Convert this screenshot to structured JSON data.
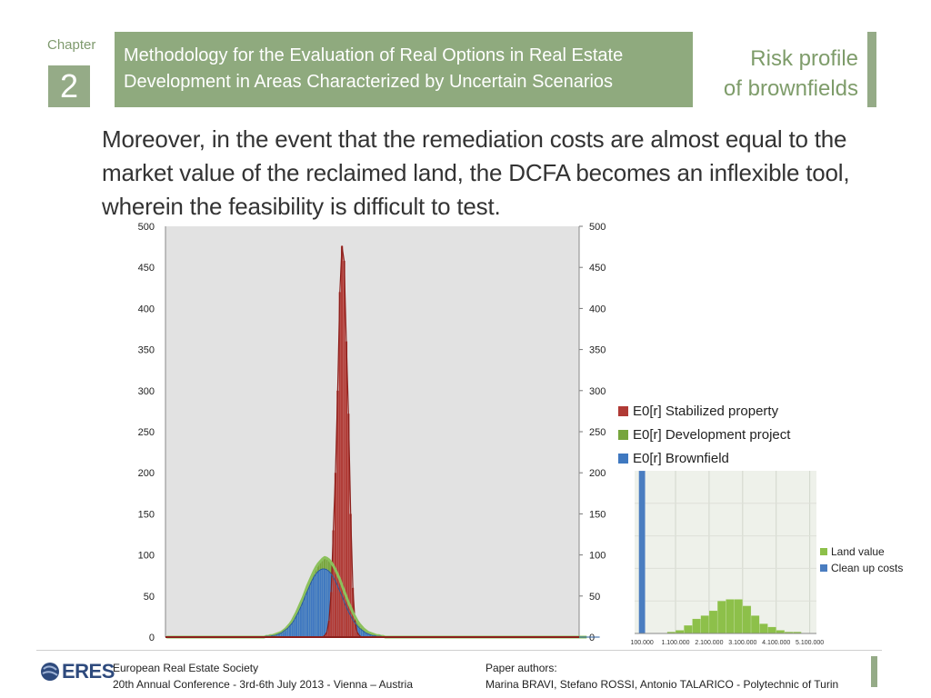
{
  "header": {
    "chapter_label": "Chapter",
    "chapter_number": "2",
    "title_line1": "Methodology for the Evaluation of Real Options in Real Estate",
    "title_line2": "Development in Areas Characterized by Uncertain Scenarios",
    "section_line1": "Risk profile",
    "section_line2": "of brownfields"
  },
  "body": {
    "paragraph": "Moreover, in the event that the remediation costs are almost equal to the market value of the reclaimed land, the DCFA becomes an inflexible tool, wherein the feasibility is difficult to test."
  },
  "colors": {
    "accent": "#8faa7e",
    "stabilized": "#b03a35",
    "development": "#77a53d",
    "brownfield": "#3f78c0",
    "land_value": "#8dc04a",
    "clean_up": "#4a7dc0"
  },
  "chart_data": [
    {
      "type": "bar",
      "title": "",
      "xlabel": "",
      "ylabel": "",
      "ylim": [
        0,
        500
      ],
      "yticks": [
        "0",
        "50",
        "100",
        "150",
        "200",
        "250",
        "300",
        "350",
        "400",
        "450",
        "500"
      ],
      "grid": false,
      "legend_position": "right",
      "x_start": -12.5,
      "bin_width": 0.5,
      "series": [
        {
          "name": "E0[r] Stabilized property",
          "color": "#b03a35",
          "values": [
            0,
            0,
            0,
            0,
            0,
            0,
            0,
            0,
            0,
            0,
            0,
            0,
            0,
            0,
            0,
            0,
            0,
            0,
            0,
            0,
            0,
            0,
            0,
            0,
            0,
            0,
            0,
            0,
            0,
            0,
            0,
            0,
            0,
            0,
            0,
            0,
            0,
            0,
            0,
            0,
            0,
            0,
            0,
            0,
            0,
            0,
            0,
            0,
            0,
            0,
            0,
            0,
            0,
            0,
            0,
            0,
            0,
            0,
            0,
            0,
            0,
            0,
            0,
            0,
            0,
            0,
            0,
            0,
            0,
            0,
            0,
            0,
            0,
            2,
            6,
            20,
            55,
            130,
            200,
            300,
            420,
            476,
            458,
            360,
            272,
            150,
            60,
            20,
            6,
            2,
            0,
            0,
            0,
            0,
            0,
            0,
            0,
            0,
            0,
            0,
            0,
            0,
            0,
            0,
            0,
            0,
            0,
            0,
            0,
            0,
            0,
            0,
            0,
            0,
            0,
            0,
            0,
            0,
            0,
            0,
            0,
            0,
            0,
            0,
            0,
            0,
            0,
            0,
            0,
            0,
            0,
            0,
            0,
            0,
            0,
            0,
            0,
            0,
            0,
            0,
            0,
            0,
            0,
            0,
            0,
            0,
            0,
            0,
            0,
            0,
            0,
            0,
            0,
            0,
            0,
            0,
            0,
            0,
            0,
            0,
            0,
            0,
            0,
            0,
            0,
            0,
            0,
            0,
            0,
            0,
            0,
            0,
            0,
            0,
            0,
            0,
            0,
            0,
            0,
            0,
            0,
            0,
            0,
            0,
            0,
            0,
            0,
            0,
            0,
            0,
            0
          ]
        },
        {
          "name": "E0[r] Development project",
          "color": "#77a53d",
          "values": [
            0,
            0,
            0,
            0,
            0,
            0,
            0,
            0,
            0,
            0,
            0,
            0,
            0,
            0,
            0,
            0,
            0,
            0,
            0,
            0,
            0,
            0,
            0,
            0,
            0,
            0,
            0,
            0,
            0,
            0,
            0,
            0,
            0,
            0,
            0,
            0,
            0,
            0,
            0,
            0,
            0,
            0,
            0,
            0,
            0,
            0,
            1,
            1,
            2,
            2,
            3,
            4,
            5,
            6,
            8,
            10,
            13,
            16,
            20,
            25,
            30,
            36,
            42,
            48,
            55,
            62,
            68,
            74,
            80,
            85,
            89,
            92,
            95,
            97,
            96,
            94,
            91,
            87,
            82,
            76,
            70,
            63,
            56,
            49,
            42,
            36,
            30,
            25,
            20,
            16,
            13,
            10,
            8,
            6,
            5,
            4,
            3,
            2,
            2,
            1,
            1,
            0,
            0,
            0,
            0,
            0,
            0,
            0,
            0,
            0,
            0,
            0,
            0,
            0,
            0,
            0,
            0,
            0,
            0,
            0,
            0,
            0,
            0,
            0,
            0,
            0,
            0,
            0,
            0,
            0,
            0,
            0,
            0,
            0,
            0,
            0,
            0,
            0,
            0,
            0,
            0,
            0,
            0,
            0,
            0,
            0,
            0,
            0,
            0,
            0,
            0,
            0,
            0,
            0,
            0,
            0,
            0,
            0,
            0,
            0,
            0,
            0,
            0,
            0,
            0,
            0,
            0,
            0,
            0,
            0,
            0,
            0,
            0,
            0,
            0,
            0,
            0,
            0,
            0,
            0,
            0,
            0,
            0,
            0,
            0,
            0,
            0,
            0,
            0,
            0,
            0,
            0,
            0,
            0,
            0
          ]
        },
        {
          "name": "E0[r] Brownfield",
          "color": "#3f78c0",
          "values": [
            0,
            0,
            0,
            0,
            0,
            0,
            0,
            0,
            0,
            0,
            0,
            0,
            0,
            0,
            0,
            0,
            0,
            0,
            0,
            0,
            0,
            0,
            0,
            0,
            0,
            0,
            0,
            0,
            0,
            0,
            0,
            0,
            0,
            0,
            0,
            0,
            0,
            0,
            0,
            0,
            0,
            0,
            0,
            0,
            0,
            0,
            1,
            1,
            1,
            2,
            2,
            3,
            4,
            5,
            7,
            9,
            11,
            14,
            17,
            21,
            26,
            31,
            37,
            43,
            50,
            56,
            62,
            68,
            73,
            77,
            80,
            82,
            83,
            83,
            82,
            80,
            77,
            73,
            68,
            62,
            56,
            50,
            43,
            37,
            31,
            26,
            21,
            17,
            14,
            11,
            9,
            7,
            5,
            4,
            3,
            2,
            2,
            1,
            1,
            1,
            0,
            0,
            0,
            0,
            0,
            0,
            0,
            0,
            0,
            0,
            0,
            0,
            0,
            0,
            0,
            0,
            0,
            0,
            0,
            0,
            0,
            0,
            0,
            0,
            0,
            0,
            0,
            0,
            0,
            0,
            0,
            0,
            0,
            0,
            0,
            0,
            0,
            0,
            0,
            0,
            0,
            0,
            0,
            0,
            0,
            0,
            0,
            0,
            0,
            0,
            0,
            0,
            0,
            0,
            0,
            0,
            0,
            0,
            0,
            0,
            0,
            0,
            0,
            0,
            0,
            0,
            0,
            0,
            0,
            0,
            0,
            0,
            0,
            0,
            0,
            0,
            0,
            0,
            0,
            0,
            0,
            0,
            0,
            0,
            0,
            0,
            0,
            0,
            0,
            0,
            0,
            0,
            0,
            0,
            0,
            0,
            0,
            0,
            0,
            0,
            0
          ]
        }
      ]
    },
    {
      "type": "bar",
      "title": "",
      "xlabel": "",
      "ylabel": "",
      "grid": true,
      "legend_position": "right",
      "ylim": [
        0,
        100
      ],
      "xticks": [
        "100.000",
        "1.100.000",
        "2.100.000",
        "3.100.000",
        "4.100.000",
        "5.100.000"
      ],
      "x_values": [
        100000,
        1100000,
        2100000,
        3100000,
        4100000,
        5100000
      ],
      "xlim": [
        -120000,
        5300000
      ],
      "bin_width": 250000,
      "series": [
        {
          "name": "Land value",
          "color": "#8dc04a",
          "x": [
            975000,
            1225000,
            1475000,
            1725000,
            1975000,
            2225000,
            2475000,
            2725000,
            2975000,
            3225000,
            3475000,
            3725000,
            3975000,
            4225000,
            4475000,
            4725000
          ],
          "values": [
            1,
            2,
            5,
            9,
            11,
            14,
            20,
            21,
            21,
            17,
            11,
            6,
            4,
            2,
            1,
            1
          ]
        },
        {
          "name": "Clean up costs",
          "color": "#4a7dc0",
          "x": [
            100000
          ],
          "values": [
            100
          ]
        }
      ]
    }
  ]
}
